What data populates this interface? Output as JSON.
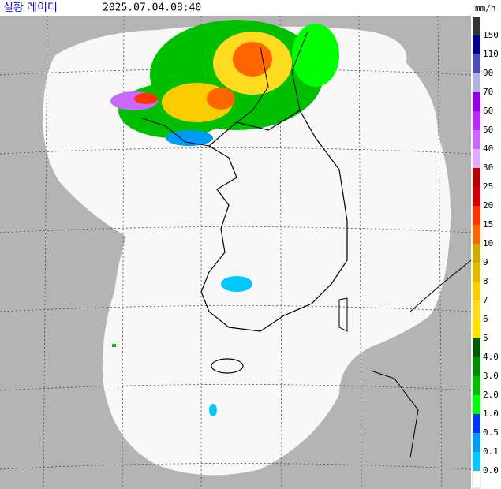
{
  "header": {
    "title": "실황 레이더",
    "time": "2025.07.04.08:40"
  },
  "legend": {
    "unit": "mm/h",
    "items": [
      {
        "label": "150",
        "color": "#333333"
      },
      {
        "label": "110",
        "color": "#000390"
      },
      {
        "label": "90",
        "color": "#4c4eb1"
      },
      {
        "label": "70",
        "color": "#b3b4de"
      },
      {
        "label": "60",
        "color": "#9300e4"
      },
      {
        "label": "50",
        "color": "#b329ff"
      },
      {
        "label": "40",
        "color": "#c969ff"
      },
      {
        "label": "30",
        "color": "#e0a9ff"
      },
      {
        "label": "25",
        "color": "#b40000"
      },
      {
        "label": "20",
        "color": "#d20000"
      },
      {
        "label": "15",
        "color": "#ff3200"
      },
      {
        "label": "10",
        "color": "#ff6600"
      },
      {
        "label": "9",
        "color": "#ccaa00"
      },
      {
        "label": "8",
        "color": "#e0b900"
      },
      {
        "label": "7",
        "color": "#f9cd00"
      },
      {
        "label": "6",
        "color": "#ffdc1f"
      },
      {
        "label": "5",
        "color": "#ffe100"
      },
      {
        "label": "4.0",
        "color": "#005a00"
      },
      {
        "label": "3.0",
        "color": "#008c00"
      },
      {
        "label": "2.0",
        "color": "#00be00"
      },
      {
        "label": "1.0",
        "color": "#00ff00"
      },
      {
        "label": "0.5",
        "color": "#0033f5"
      },
      {
        "label": "0.1",
        "color": "#009bf5"
      },
      {
        "label": "0.0",
        "color": "#00c8ff"
      }
    ]
  }
}
